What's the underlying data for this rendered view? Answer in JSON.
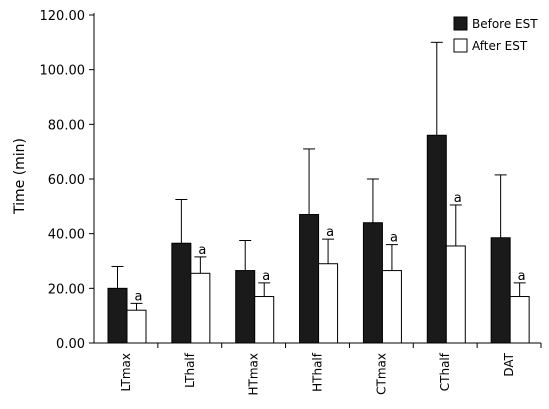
{
  "chart_data": {
    "type": "bar",
    "title": "",
    "xlabel": "",
    "ylabel": "Time (min)",
    "ylim": [
      0,
      120
    ],
    "yticks": [
      "0.00",
      "20.00",
      "40.00",
      "60.00",
      "80.00",
      "100.00",
      "120.00"
    ],
    "grid": false,
    "legend_position": "top-right",
    "categories": [
      "LTmax",
      "LThalf",
      "HTmax",
      "HThalf",
      "CTmax",
      "CThalf",
      "DAT"
    ],
    "series": [
      {
        "name": "Before EST",
        "color": "#1a1a1a",
        "values": [
          20.0,
          36.5,
          26.5,
          47.0,
          44.0,
          76.0,
          38.5
        ],
        "error": [
          8.0,
          16.0,
          11.0,
          24.0,
          16.0,
          34.0,
          23.0
        ]
      },
      {
        "name": "After EST",
        "color": "#ffffff",
        "values": [
          12.0,
          25.5,
          17.0,
          29.0,
          26.5,
          35.5,
          17.0
        ],
        "error": [
          2.5,
          6.0,
          5.0,
          9.0,
          9.5,
          15.0,
          5.0
        ]
      }
    ],
    "annotations": [
      "a",
      "a",
      "a",
      "a",
      "a",
      "a",
      "a"
    ]
  }
}
